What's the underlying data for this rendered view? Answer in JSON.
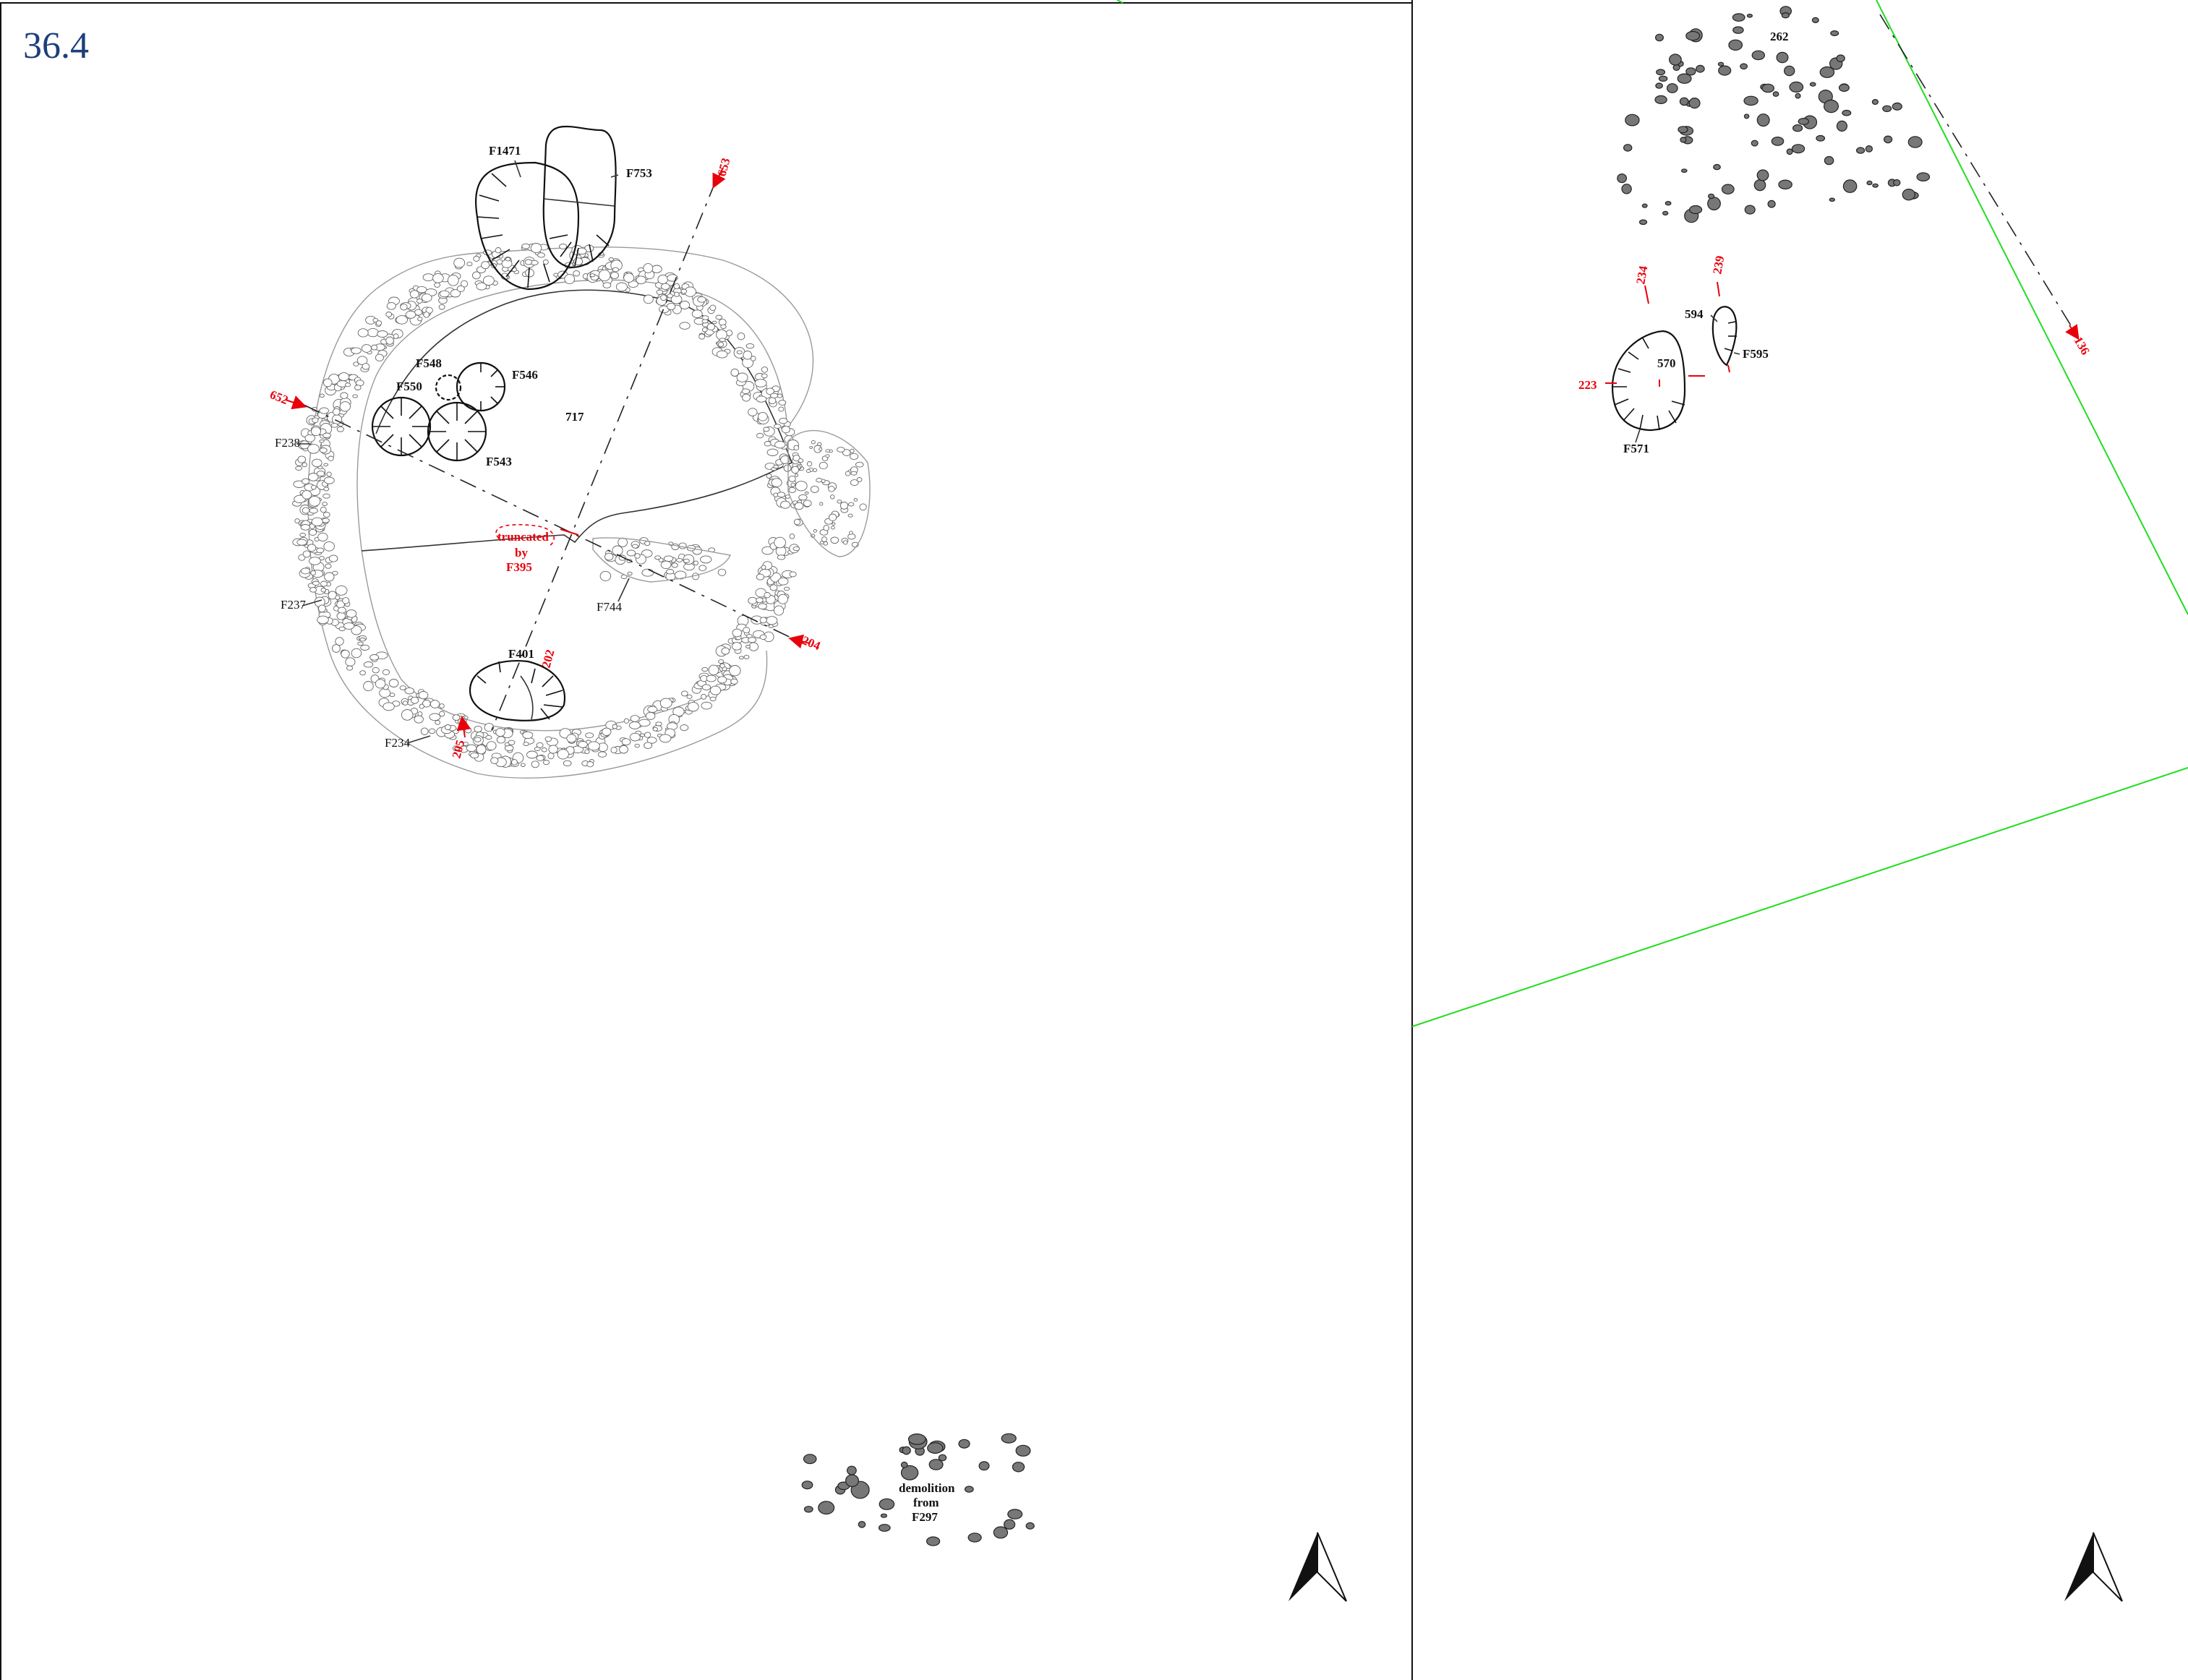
{
  "figure": {
    "label": "36.4"
  },
  "left_panel": {
    "features": [
      "F1471",
      "F753",
      "F548",
      "F546",
      "F550",
      "F543",
      "F238",
      "F237",
      "F744",
      "F401",
      "F234"
    ],
    "context": "717",
    "section_markers": [
      "653",
      "652",
      "204",
      "202",
      "205"
    ],
    "note": [
      "truncated",
      "by",
      "F395"
    ],
    "demolition": [
      "demolition",
      "from",
      "F297"
    ]
  },
  "right_panel": {
    "context_labels": [
      "262",
      "594",
      "570"
    ],
    "features": [
      "F595",
      "F571"
    ],
    "section_markers": [
      "234",
      "239",
      "223",
      "136"
    ]
  },
  "colors": {
    "figure_label": "#1d3f7a",
    "section_red": "#e8000b",
    "grid_green": "#22dd22",
    "ink": "#111111",
    "wall_grey": "#9a9a9a"
  },
  "icons": [
    "north-arrow-icon",
    "north-arrow-icon"
  ]
}
